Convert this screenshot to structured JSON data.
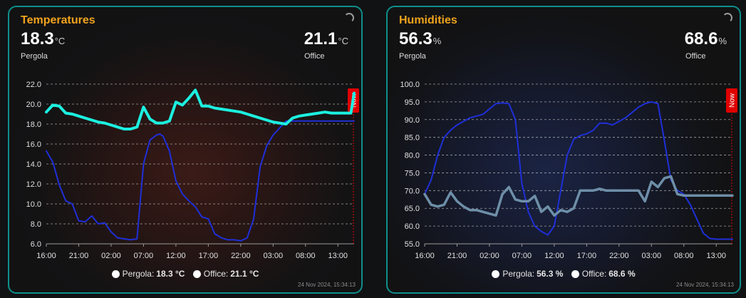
{
  "temperatures": {
    "title": "Temperatures",
    "left": {
      "value": "18.3",
      "unit": "°C",
      "name": "Pergola"
    },
    "right": {
      "value": "21.1",
      "unit": "°C",
      "name": "Office"
    },
    "now_label": "Now",
    "legend": [
      {
        "name": "Pergola:",
        "value": "18.3 °C"
      },
      {
        "name": "Office:",
        "value": "21.1 °C"
      }
    ],
    "timestamp": "24 Nov 2024, 15:34:13",
    "colors": {
      "pergola": "#1f2fd8",
      "office": "#1cf0e0",
      "office_alt": "#17a35a",
      "now": "#e00000"
    }
  },
  "humidities": {
    "title": "Humidities",
    "left": {
      "value": "56.3",
      "unit": "%",
      "name": "Pergola"
    },
    "right": {
      "value": "68.6",
      "unit": "%",
      "name": "Office"
    },
    "now_label": "Now",
    "legend": [
      {
        "name": "Pergola:",
        "value": "56.3 %"
      },
      {
        "name": "Office:",
        "value": "68.6 %"
      }
    ],
    "timestamp": "24 Nov 2024, 15:34:13",
    "colors": {
      "pergola": "#1f2fd8",
      "office": "#6e8fa8",
      "now": "#e00000"
    }
  },
  "chart_data": [
    {
      "type": "line",
      "title": "Temperatures",
      "ylim": [
        6.0,
        22.0
      ],
      "yticks": [
        "6.0",
        "8.0",
        "10.0",
        "12.0",
        "14.0",
        "16.0",
        "18.0",
        "20.0",
        "22.0"
      ],
      "xticks": [
        "16:00",
        "21:00",
        "02:00",
        "07:00",
        "12:00",
        "17:00",
        "22:00",
        "03:00",
        "08:00",
        "13:00"
      ],
      "xlim": [
        0,
        47.5
      ],
      "grid": true,
      "legend_position": "bottom",
      "series": [
        {
          "name": "Pergola",
          "x": [
            0,
            1,
            2,
            3,
            4,
            5,
            6,
            7,
            8,
            9,
            10,
            11,
            12,
            13,
            14,
            15,
            16,
            17,
            17.5,
            18,
            19,
            20,
            21,
            22,
            23,
            24,
            25,
            26,
            27,
            28,
            29,
            30,
            31,
            32,
            33,
            34,
            35,
            36,
            37,
            38,
            39,
            40,
            41,
            42,
            43,
            44,
            45,
            46,
            47,
            47.5
          ],
          "y": [
            15.3,
            14.2,
            11.9,
            10.3,
            10.0,
            8.3,
            8.2,
            8.8,
            8.0,
            8.1,
            7.2,
            6.6,
            6.5,
            6.4,
            6.5,
            14.0,
            16.4,
            16.9,
            17.0,
            16.8,
            15.3,
            12.3,
            11.0,
            10.3,
            9.7,
            8.7,
            8.5,
            7.0,
            6.6,
            6.4,
            6.4,
            6.3,
            6.6,
            8.5,
            13.7,
            15.8,
            16.9,
            17.6,
            18.3,
            18.3,
            18.3,
            18.3,
            18.3,
            18.3,
            18.3,
            18.3,
            18.3,
            18.3,
            18.3,
            18.3
          ]
        },
        {
          "name": "Office",
          "x": [
            0,
            1,
            2,
            3,
            4,
            5,
            6,
            7,
            8,
            9,
            10,
            11,
            12,
            13,
            14,
            15,
            16,
            17,
            18,
            19,
            20,
            21,
            22,
            23,
            24,
            25,
            26,
            27,
            28,
            29,
            30,
            31,
            32,
            33,
            34,
            35,
            36,
            37,
            38,
            39,
            40,
            41,
            42,
            43,
            44,
            45,
            46,
            47,
            47.5
          ],
          "y": [
            19.2,
            19.9,
            19.8,
            19.1,
            19.0,
            18.8,
            18.6,
            18.4,
            18.2,
            18.1,
            17.9,
            17.7,
            17.5,
            17.5,
            17.7,
            19.7,
            18.5,
            18.1,
            18.1,
            18.3,
            20.2,
            19.9,
            20.6,
            21.4,
            19.8,
            19.8,
            19.6,
            19.5,
            19.4,
            19.3,
            19.2,
            19.0,
            18.8,
            18.6,
            18.4,
            18.2,
            18.1,
            18.0,
            18.6,
            18.8,
            18.9,
            19.0,
            19.1,
            19.2,
            19.1,
            19.1,
            19.1,
            19.1,
            21.1
          ]
        }
      ]
    },
    {
      "type": "line",
      "title": "Humidities",
      "ylim": [
        55.0,
        100.0
      ],
      "yticks": [
        "55.0",
        "60.0",
        "65.0",
        "70.0",
        "75.0",
        "80.0",
        "85.0",
        "90.0",
        "95.0",
        "100.0"
      ],
      "xticks": [
        "16:00",
        "21:00",
        "02:00",
        "07:00",
        "12:00",
        "17:00",
        "22:00",
        "03:00",
        "08:00",
        "13:00"
      ],
      "xlim": [
        0,
        47.5
      ],
      "grid": true,
      "legend_position": "bottom",
      "series": [
        {
          "name": "Pergola",
          "x": [
            0,
            1,
            2,
            3,
            4,
            5,
            6,
            7,
            8,
            9,
            10,
            11,
            12,
            13,
            14,
            15,
            16,
            17,
            18,
            19,
            20,
            21,
            22,
            23,
            24,
            25,
            26,
            27,
            28,
            29,
            30,
            31,
            32,
            33,
            34,
            35,
            36,
            37,
            38,
            39,
            40,
            41,
            42,
            43,
            44,
            45,
            46,
            47,
            47.5
          ],
          "y": [
            69.0,
            73.0,
            80.0,
            85.0,
            87.0,
            88.5,
            89.5,
            90.5,
            91.0,
            91.5,
            93.0,
            94.5,
            94.7,
            94.5,
            90.0,
            72.0,
            64.0,
            60.0,
            58.5,
            57.5,
            60.0,
            70.0,
            80.0,
            84.5,
            85.5,
            86.0,
            87.0,
            89.0,
            89.0,
            88.5,
            89.5,
            90.5,
            92.0,
            93.5,
            94.5,
            95.0,
            94.5,
            84.0,
            73.0,
            70.0,
            69.0,
            66.0,
            62.0,
            58.0,
            56.5,
            56.3,
            56.3,
            56.3,
            56.3
          ]
        },
        {
          "name": "Office",
          "x": [
            0,
            1,
            2,
            3,
            4,
            5,
            6,
            7,
            8,
            9,
            10,
            11,
            12,
            13,
            14,
            15,
            16,
            17,
            18,
            19,
            20,
            21,
            22,
            23,
            24,
            25,
            26,
            27,
            28,
            29,
            30,
            31,
            32,
            33,
            34,
            35,
            36,
            37,
            38,
            39,
            40,
            41,
            42,
            43,
            44,
            45,
            46,
            47,
            47.5
          ],
          "y": [
            69.0,
            66.0,
            65.5,
            66.0,
            69.5,
            67.0,
            65.5,
            64.5,
            64.5,
            64.0,
            63.5,
            63.0,
            69.0,
            71.0,
            67.5,
            67.0,
            67.0,
            68.5,
            64.0,
            65.5,
            63.0,
            64.5,
            64.0,
            65.0,
            70.0,
            70.0,
            70.0,
            70.5,
            70.0,
            70.0,
            70.0,
            70.0,
            70.0,
            70.0,
            67.0,
            72.5,
            71.0,
            73.5,
            74.0,
            69.0,
            68.6,
            68.6,
            68.6,
            68.6,
            68.6,
            68.6,
            68.6,
            68.6,
            68.6
          ]
        }
      ]
    }
  ]
}
